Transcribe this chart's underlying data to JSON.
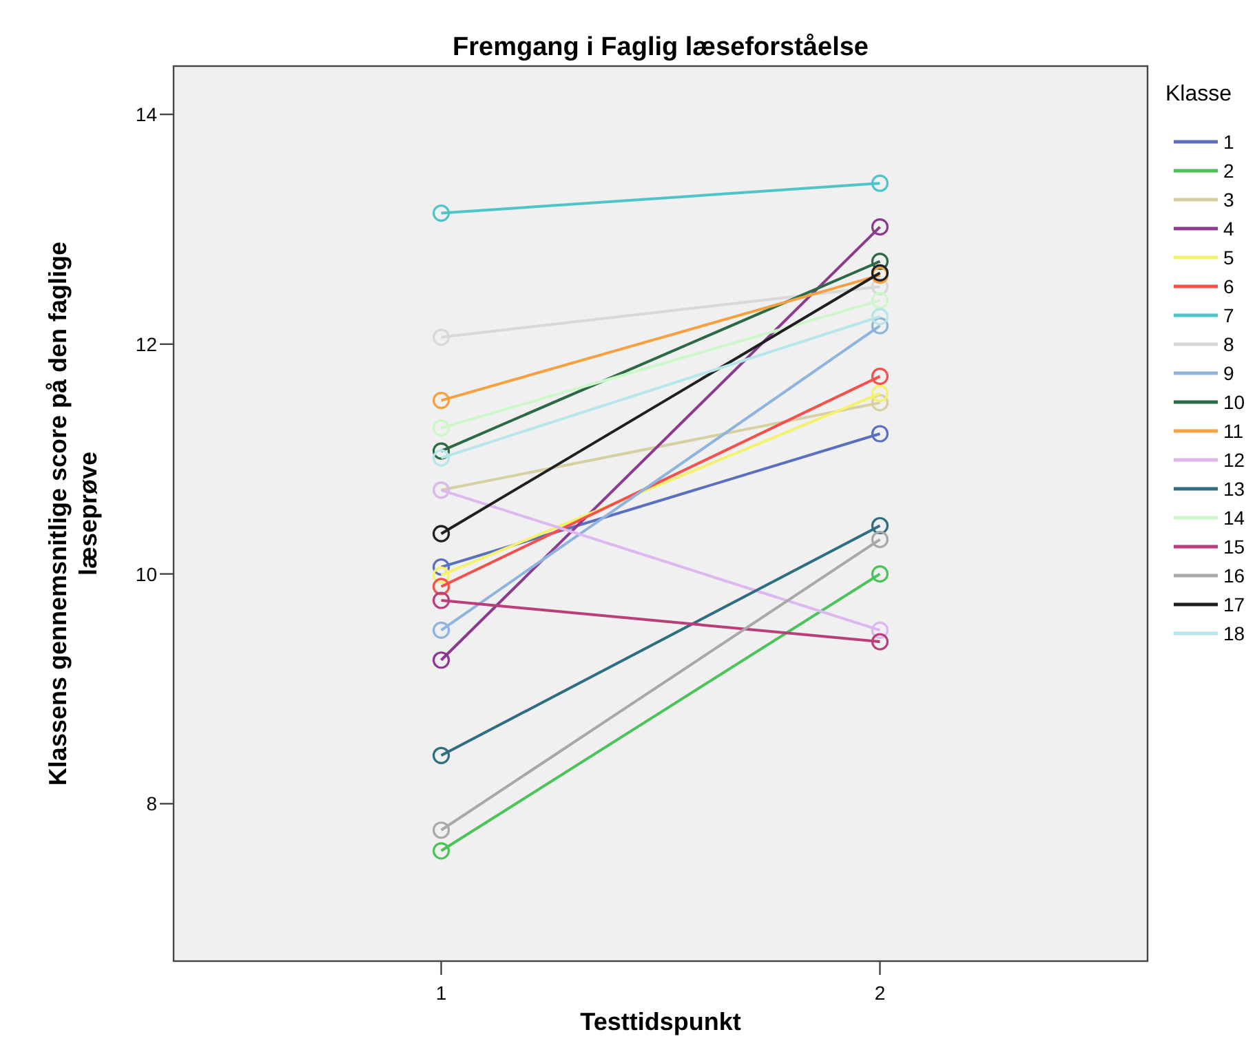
{
  "chart_data": {
    "type": "line",
    "title": "Fremgang i Faglig læseforståelse",
    "xlabel": "Testtidspunkt",
    "ylabel": "Klassens gennemsnitlige score på den faglige læseprøve",
    "legend_title": "Klasse",
    "x": [
      1,
      2
    ],
    "xlim": [
      0.39,
      2.61
    ],
    "xticks": [
      1,
      2
    ],
    "ylim": [
      6.63,
      14.42
    ],
    "yticks": [
      8,
      10,
      12,
      14
    ],
    "grid": false,
    "legend": "right",
    "marker": "circle",
    "line_style": "solid",
    "series": [
      {
        "name": "1",
        "color": "#5b6fc0",
        "values": [
          10.06,
          11.22
        ]
      },
      {
        "name": "2",
        "color": "#4cc35a",
        "values": [
          7.59,
          10.0
        ]
      },
      {
        "name": "3",
        "color": "#d6cfa3",
        "values": [
          10.73,
          11.49
        ]
      },
      {
        "name": "4",
        "color": "#8b3a8f",
        "values": [
          9.25,
          13.02
        ]
      },
      {
        "name": "5",
        "color": "#f4f26a",
        "values": [
          9.99,
          11.57
        ]
      },
      {
        "name": "6",
        "color": "#f5504e",
        "values": [
          9.89,
          11.72
        ]
      },
      {
        "name": "7",
        "color": "#4fc4c8",
        "values": [
          13.14,
          13.4
        ]
      },
      {
        "name": "8",
        "color": "#d8d8d8",
        "values": [
          12.06,
          12.5
        ]
      },
      {
        "name": "9",
        "color": "#8eb4de",
        "values": [
          9.51,
          12.16
        ]
      },
      {
        "name": "10",
        "color": "#2c6a45",
        "values": [
          11.07,
          12.72
        ]
      },
      {
        "name": "11",
        "color": "#f7a040",
        "values": [
          11.51,
          12.6
        ]
      },
      {
        "name": "12",
        "color": "#ddb7f0",
        "values": [
          10.73,
          9.51
        ]
      },
      {
        "name": "13",
        "color": "#2f6e80",
        "values": [
          8.42,
          10.42
        ]
      },
      {
        "name": "14",
        "color": "#ccf7c8",
        "values": [
          11.27,
          12.38
        ]
      },
      {
        "name": "15",
        "color": "#b93e7a",
        "values": [
          9.77,
          9.41
        ]
      },
      {
        "name": "16",
        "color": "#a8a8a8",
        "values": [
          7.77,
          10.3
        ]
      },
      {
        "name": "17",
        "color": "#1f1f1f",
        "values": [
          10.35,
          12.62
        ]
      },
      {
        "name": "18",
        "color": "#b6e6ea",
        "values": [
          11.01,
          12.24
        ]
      }
    ]
  }
}
